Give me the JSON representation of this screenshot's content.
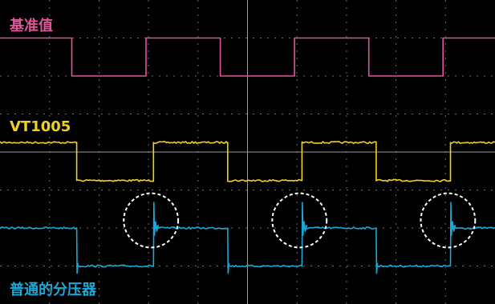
{
  "chart_data": {
    "type": "line",
    "grid": true,
    "x_divisions": 10,
    "y_divisions": 8,
    "background": "#000000",
    "series": [
      {
        "name": "基准值",
        "color": "#e0559a",
        "noise": "none",
        "overshoot": false,
        "x": [
          0.0,
          1.45,
          1.45,
          2.95,
          2.95,
          4.45,
          4.45,
          5.95,
          5.95,
          7.45,
          7.45,
          8.95,
          8.95,
          10.0
        ],
        "y": [
          3.0,
          3.0,
          2.0,
          2.0,
          3.0,
          3.0,
          2.0,
          2.0,
          3.0,
          3.0,
          2.0,
          2.0,
          3.0,
          3.0
        ]
      },
      {
        "name": "VT1005",
        "color": "#f0d020",
        "noise": "medium",
        "overshoot": false,
        "x": [
          0.0,
          1.55,
          1.55,
          3.1,
          3.1,
          4.6,
          4.6,
          6.1,
          6.1,
          7.6,
          7.6,
          9.1,
          9.1,
          10.0
        ],
        "y": [
          0.25,
          0.25,
          -0.75,
          -0.75,
          0.25,
          0.25,
          -0.75,
          -0.75,
          0.25,
          0.25,
          -0.75,
          -0.75,
          0.25,
          0.25
        ]
      },
      {
        "name": "普通的分压器",
        "color": "#1aa8d8",
        "noise": "medium",
        "overshoot": true,
        "x": [
          0.0,
          1.55,
          1.55,
          3.1,
          3.1,
          4.6,
          4.6,
          6.1,
          6.1,
          7.6,
          7.6,
          9.1,
          9.1,
          10.0
        ],
        "y": [
          -2.0,
          -2.0,
          -3.0,
          -3.0,
          -2.0,
          -2.0,
          -3.0,
          -3.0,
          -2.0,
          -2.0,
          -3.0,
          -3.0,
          -2.0,
          -2.0
        ]
      }
    ],
    "annotations": [
      {
        "shape": "dashed-circle",
        "x": 3.05,
        "y": -1.8,
        "r": 0.55
      },
      {
        "shape": "dashed-circle",
        "x": 6.05,
        "y": -1.8,
        "r": 0.55
      },
      {
        "shape": "dashed-circle",
        "x": 9.05,
        "y": -1.8,
        "r": 0.55
      }
    ]
  }
}
